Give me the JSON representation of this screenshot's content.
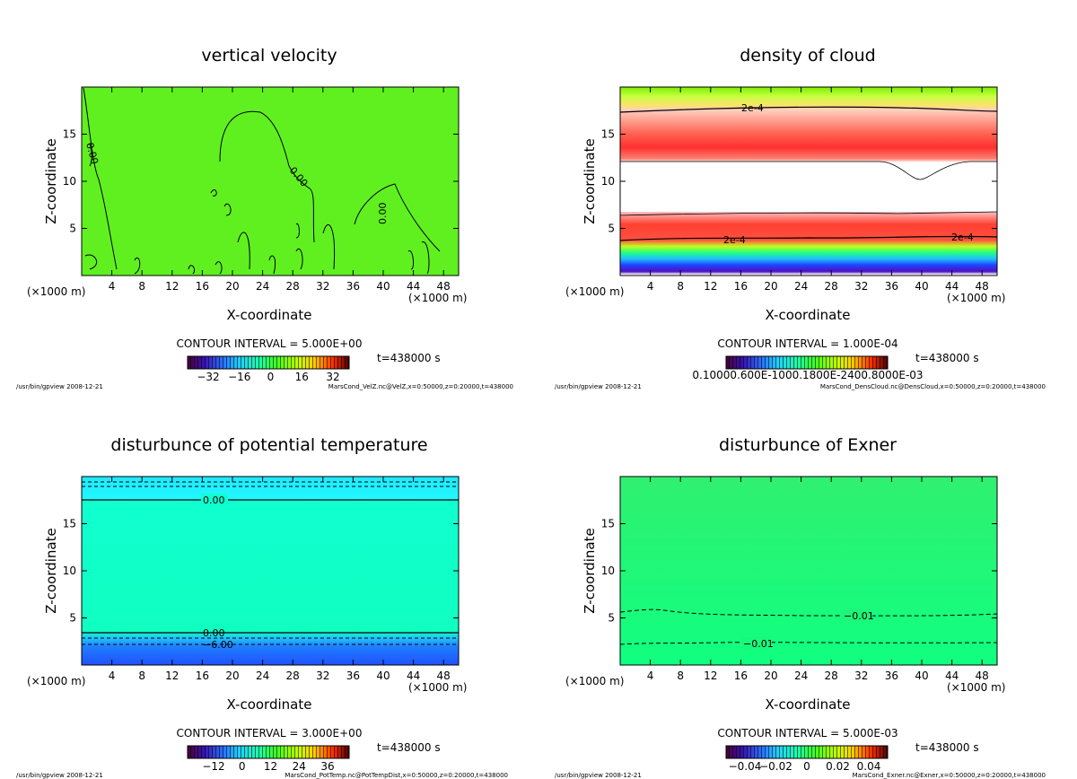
{
  "footer_left": "/usr/bin/gpview  2008-12-21",
  "chart_data": [
    {
      "type": "heatmap",
      "title": "vertical velocity",
      "xlabel": "X-coordinate",
      "ylabel": "Z-coordinate",
      "x_unit": "(×1000 m)",
      "xlim": [
        0,
        50
      ],
      "ylim": [
        0,
        20
      ],
      "xticks": [
        "4",
        "8",
        "12",
        "16",
        "20",
        "24",
        "28",
        "32",
        "36",
        "40",
        "44",
        "48"
      ],
      "yticks": [
        "5",
        "10",
        "15"
      ],
      "contour_interval": "CONTOUR INTERVAL = 5.000E+00",
      "time": "t=438000 s",
      "colorbar_ticks": [
        "−32",
        "−16",
        "0",
        "16",
        "32"
      ],
      "contour_labels": [
        "0.00",
        "0.00",
        "0.00"
      ],
      "source": "MarsCond_VelZ.nc@VelZ,x=0:50000,z=0:20000,t=438000"
    },
    {
      "type": "heatmap",
      "title": "density of cloud",
      "xlabel": "X-coordinate",
      "ylabel": "Z-coordinate",
      "x_unit": "(×1000 m)",
      "xlim": [
        0,
        50
      ],
      "ylim": [
        0,
        20
      ],
      "xticks": [
        "4",
        "8",
        "12",
        "16",
        "20",
        "24",
        "28",
        "32",
        "36",
        "40",
        "44",
        "48"
      ],
      "yticks": [
        "5",
        "10",
        "15"
      ],
      "contour_interval": "CONTOUR INTERVAL = 1.000E-04",
      "time": "t=438000 s",
      "colorbar_label": "0.10000.600E-1000.1800E-2400.8000E-03",
      "contour_labels": [
        "2e-4",
        "2e-4",
        "2e-4"
      ],
      "source": "MarsCond_DensCloud.nc@DensCloud,x=0:50000,z=0:20000,t=438000"
    },
    {
      "type": "heatmap",
      "title": "disturbunce of potential temperature",
      "xlabel": "X-coordinate",
      "ylabel": "Z-coordinate",
      "x_unit": "(×1000 m)",
      "xlim": [
        0,
        50
      ],
      "ylim": [
        0,
        20
      ],
      "xticks": [
        "4",
        "8",
        "12",
        "16",
        "20",
        "24",
        "28",
        "32",
        "36",
        "40",
        "44",
        "48"
      ],
      "yticks": [
        "5",
        "10",
        "15"
      ],
      "contour_interval": "CONTOUR INTERVAL = 3.000E+00",
      "time": "t=438000 s",
      "colorbar_ticks": [
        "−12",
        "0",
        "12",
        "24",
        "36"
      ],
      "contour_labels": [
        "0.00",
        "0.00",
        "−6.00"
      ],
      "source": "MarsCond_PotTemp.nc@PotTempDist,x=0:50000,z=0:20000,t=438000"
    },
    {
      "type": "heatmap",
      "title": "disturbunce of Exner",
      "xlabel": "X-coordinate",
      "ylabel": "Z-coordinate",
      "x_unit": "(×1000 m)",
      "xlim": [
        0,
        50
      ],
      "ylim": [
        0,
        20
      ],
      "xticks": [
        "4",
        "8",
        "12",
        "16",
        "20",
        "24",
        "28",
        "32",
        "36",
        "40",
        "44",
        "48"
      ],
      "yticks": [
        "5",
        "10",
        "15"
      ],
      "contour_interval": "CONTOUR INTERVAL = 5.000E-03",
      "time": "t=438000 s",
      "colorbar_ticks": [
        "−0.04",
        "−0.02",
        "0",
        "0.02",
        "0.04"
      ],
      "contour_labels": [
        "−0.01",
        "−0.01"
      ],
      "source": "MarsCond_Exner.nc@Exner,x=0:50000,z=0:20000,t=438000"
    }
  ]
}
